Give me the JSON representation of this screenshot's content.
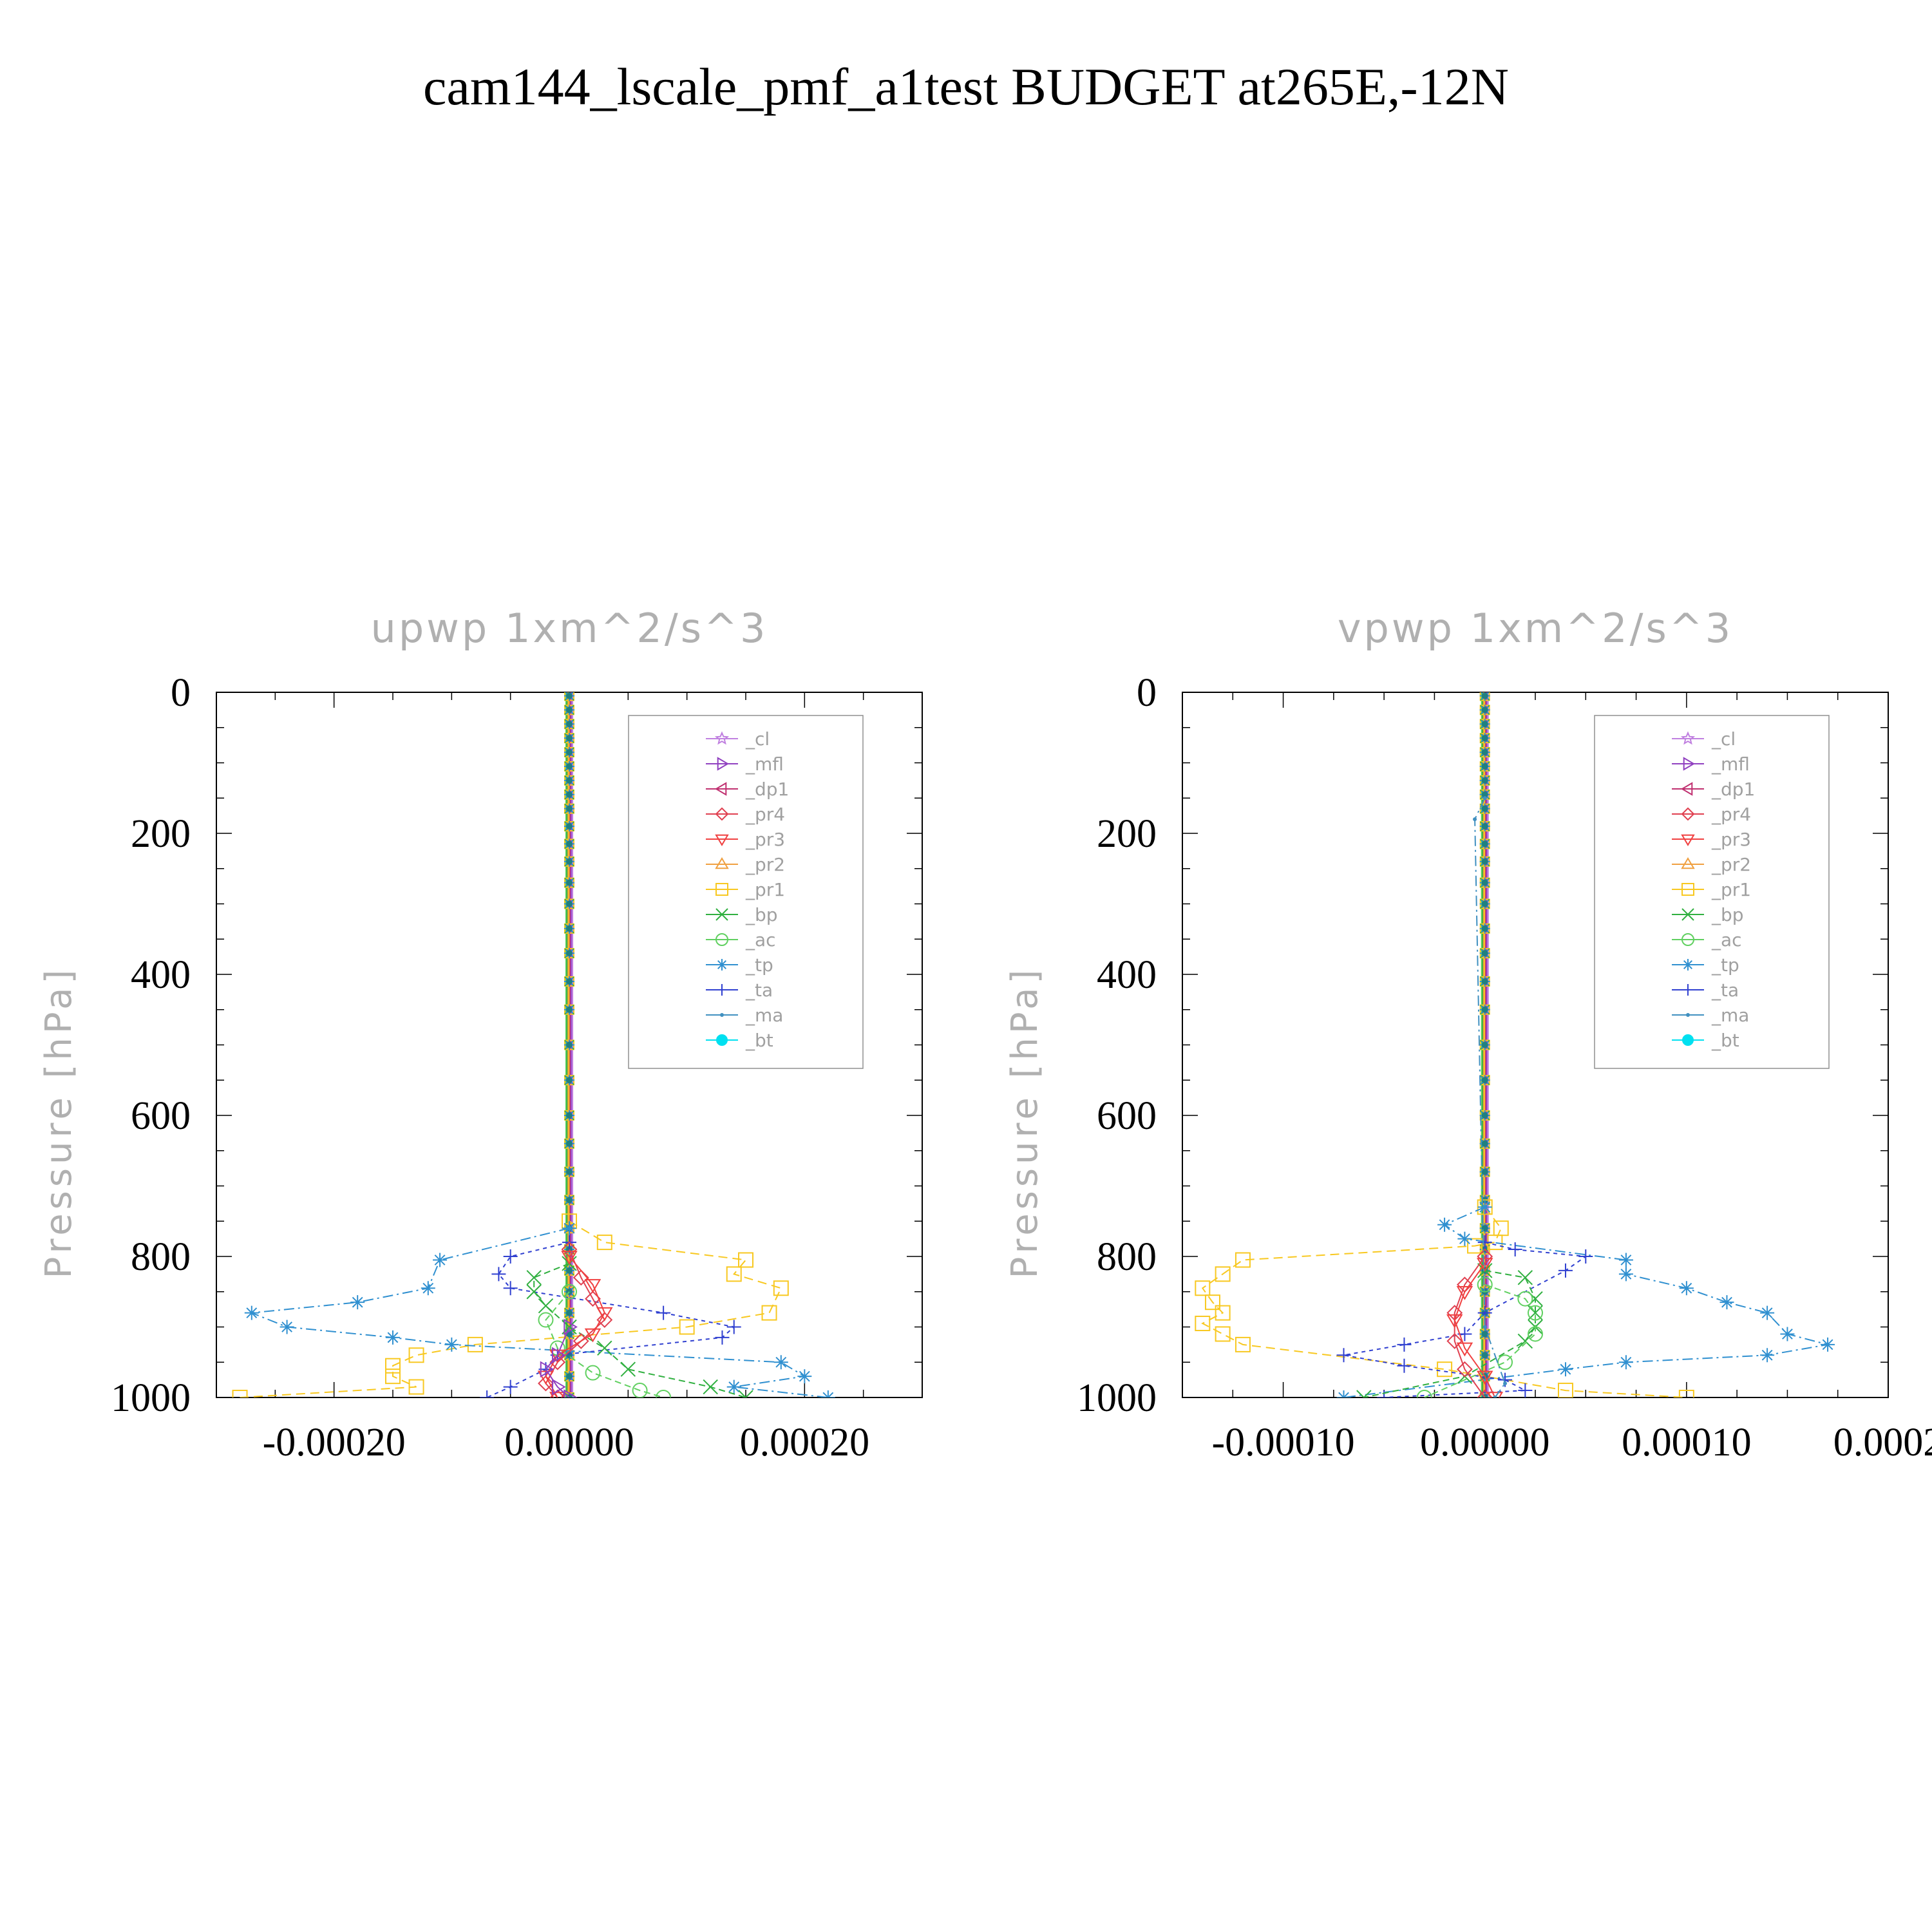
{
  "figure": {
    "title": "cam144_lscale_pmf_a1test  BUDGET at265E,-12N"
  },
  "colors": {
    "_cl": "#c080e0",
    "_mfl": "#9040c0",
    "_dp1": "#c03070",
    "_pr4": "#e04050",
    "_pr3": "#f04040",
    "_pr2": "#f0a040",
    "_pr1": "#f8c820",
    "_bp": "#30b040",
    "_ac": "#60d060",
    "_tp": "#3090d0",
    "_ta": "#3040d0",
    "_ma": "#4090c0",
    "_bt": "#00e0f0"
  },
  "chart_data": [
    {
      "type": "line",
      "title": "upwp    1xm^2/s^3",
      "ylabel": "Pressure  [hPa]",
      "xlim": [
        -0.0003,
        0.0003
      ],
      "ylim": [
        1000,
        0
      ],
      "xticks": [
        -0.0002,
        0.0,
        0.0002
      ],
      "xtick_labels": [
        "-0.00020",
        "0.00000",
        "0.00020"
      ],
      "yticks": [
        0,
        200,
        400,
        600,
        800,
        1000
      ],
      "ytick_labels": [
        "0",
        "200",
        "400",
        "600",
        "800",
        "1000"
      ],
      "legend_position": "top-right",
      "legend": [
        "_cl",
        "_mfl",
        "_dp1",
        "_pr4",
        "_pr3",
        "_pr2",
        "_pr1",
        "_bp",
        "_ac",
        "_tp",
        "_ta",
        "_ma",
        "_bt"
      ],
      "series": [
        {
          "name": "_pr1",
          "marker": "square",
          "x": [
            0,
            3e-05,
            0.00015,
            0.00014,
            0.00018,
            0.00017,
            0.0001,
            -8e-05,
            -0.00013,
            -0.00015,
            -0.00015,
            -0.00013,
            -0.00028
          ],
          "y": [
            750,
            780,
            805,
            825,
            845,
            880,
            900,
            925,
            940,
            955,
            970,
            985,
            1000
          ]
        },
        {
          "name": "_tp",
          "marker": "asterisk",
          "x": [
            0,
            -0.00011,
            -0.00012,
            -0.00018,
            -0.00027,
            -0.00024,
            -0.00015,
            -0.0001,
            0.00018,
            0.0002,
            0.00014,
            0.00022
          ],
          "y": [
            760,
            805,
            845,
            865,
            880,
            900,
            915,
            925,
            950,
            970,
            985,
            1000
          ]
        },
        {
          "name": "_ta",
          "marker": "plus",
          "x": [
            0,
            -5e-05,
            -6e-05,
            -5e-05,
            8e-05,
            0.00014,
            0.00013,
            -1e-05,
            -2e-05,
            -5e-05,
            -7e-05
          ],
          "y": [
            780,
            800,
            825,
            845,
            880,
            900,
            915,
            940,
            960,
            985,
            1000
          ]
        },
        {
          "name": "_bp",
          "marker": "x",
          "x": [
            0,
            -3e-05,
            -3e-05,
            -2e-05,
            0.0,
            3e-05,
            5e-05,
            0.00012,
            0.00015
          ],
          "y": [
            810,
            830,
            850,
            870,
            900,
            930,
            960,
            985,
            1000
          ]
        },
        {
          "name": "_ac",
          "marker": "circle",
          "x": [
            0,
            -2e-05,
            -1e-05,
            2e-05,
            6e-05,
            8e-05
          ],
          "y": [
            850,
            890,
            930,
            965,
            990,
            1000
          ]
        },
        {
          "name": "_pr4",
          "marker": "diamond",
          "x": [
            0,
            1e-05,
            2e-05,
            3e-05,
            1e-05,
            -1e-05,
            -2e-05,
            -1e-05
          ],
          "y": [
            790,
            830,
            860,
            890,
            920,
            950,
            980,
            1000
          ]
        },
        {
          "name": "_pr3",
          "marker": "triangle-down",
          "x": [
            0,
            2e-05,
            3e-05,
            2e-05,
            -1e-05,
            -2e-05,
            -1e-05
          ],
          "y": [
            800,
            840,
            880,
            910,
            940,
            970,
            1000
          ]
        },
        {
          "name": "_mfl",
          "marker": "triangle-right",
          "x": [
            0,
            -1e-05,
            -2e-05,
            -1e-05,
            0.0
          ],
          "y": [
            900,
            940,
            960,
            985,
            1000
          ]
        }
      ]
    },
    {
      "type": "line",
      "title": "vpwp    1xm^2/s^3",
      "ylabel": "Pressure  [hPa]",
      "xlim": [
        -0.00015,
        0.0002
      ],
      "ylim": [
        1000,
        0
      ],
      "xticks": [
        -0.0001,
        0.0,
        0.0001,
        0.0002
      ],
      "xtick_labels": [
        "-0.00010",
        "0.00000",
        "0.00010",
        "0.0002"
      ],
      "yticks": [
        0,
        200,
        400,
        600,
        800,
        1000
      ],
      "ytick_labels": [
        "0",
        "200",
        "400",
        "600",
        "800",
        "1000"
      ],
      "legend_position": "top-right",
      "legend": [
        "_cl",
        "_mfl",
        "_dp1",
        "_pr4",
        "_pr3",
        "_pr2",
        "_pr1",
        "_bp",
        "_ac",
        "_tp",
        "_ta",
        "_ma",
        "_bt"
      ],
      "series": [
        {
          "name": "_pr1",
          "marker": "square",
          "x": [
            0,
            8e-06,
            5e-06,
            -5e-06,
            -0.00012,
            -0.00013,
            -0.00014,
            -0.000135,
            -0.00013,
            -0.00014,
            -0.00013,
            -0.00012,
            -2e-05,
            4e-05,
            0.0001
          ],
          "y": [
            730,
            760,
            780,
            785,
            805,
            825,
            845,
            865,
            880,
            895,
            910,
            925,
            960,
            990,
            1000
          ]
        },
        {
          "name": "_tp",
          "marker": "asterisk",
          "x": [
            0,
            -2e-05,
            -1e-05,
            7e-05,
            7e-05,
            0.0001,
            0.00012,
            0.00014,
            0.00015,
            0.00017,
            0.00014,
            7e-05,
            4e-05,
            -7e-05
          ],
          "y": [
            730,
            755,
            775,
            805,
            825,
            845,
            865,
            880,
            910,
            925,
            940,
            950,
            960,
            1000
          ]
        },
        {
          "name": "_ta",
          "marker": "plus",
          "x": [
            0,
            1.5e-05,
            5e-05,
            4e-05,
            0.0,
            -1e-05,
            -4e-05,
            -7e-05,
            -4e-05,
            1e-05,
            2e-05,
            -5e-05
          ],
          "y": [
            780,
            790,
            800,
            820,
            880,
            910,
            925,
            940,
            955,
            975,
            990,
            1000
          ]
        },
        {
          "name": "_bp",
          "marker": "x",
          "x": [
            0,
            2e-05,
            2.5e-05,
            2.5e-05,
            2.5e-05,
            2e-05,
            -1e-05,
            -6e-05
          ],
          "y": [
            820,
            830,
            860,
            880,
            900,
            920,
            970,
            1000
          ]
        },
        {
          "name": "_ac",
          "marker": "circle",
          "x": [
            0,
            2e-05,
            2.5e-05,
            2.5e-05,
            1e-05,
            -3e-05
          ],
          "y": [
            840,
            860,
            880,
            910,
            950,
            1000
          ]
        },
        {
          "name": "_pr4",
          "marker": "diamond",
          "x": [
            0,
            -1e-05,
            -1.5e-05,
            -1.5e-05,
            -1e-05,
            0.0
          ],
          "y": [
            800,
            840,
            880,
            920,
            960,
            1000
          ]
        },
        {
          "name": "_pr3",
          "marker": "triangle-down",
          "x": [
            0,
            -1e-05,
            -1.5e-05,
            -1e-05,
            0.0,
            5e-06
          ],
          "y": [
            810,
            850,
            890,
            930,
            970,
            1000
          ]
        },
        {
          "name": "_ma",
          "marker": "dot",
          "x": [
            0,
            -5e-06,
            0.0,
            1e-05,
            5e-06
          ],
          "y": [
            150,
            180,
            900,
            980,
            1000
          ]
        }
      ]
    }
  ]
}
